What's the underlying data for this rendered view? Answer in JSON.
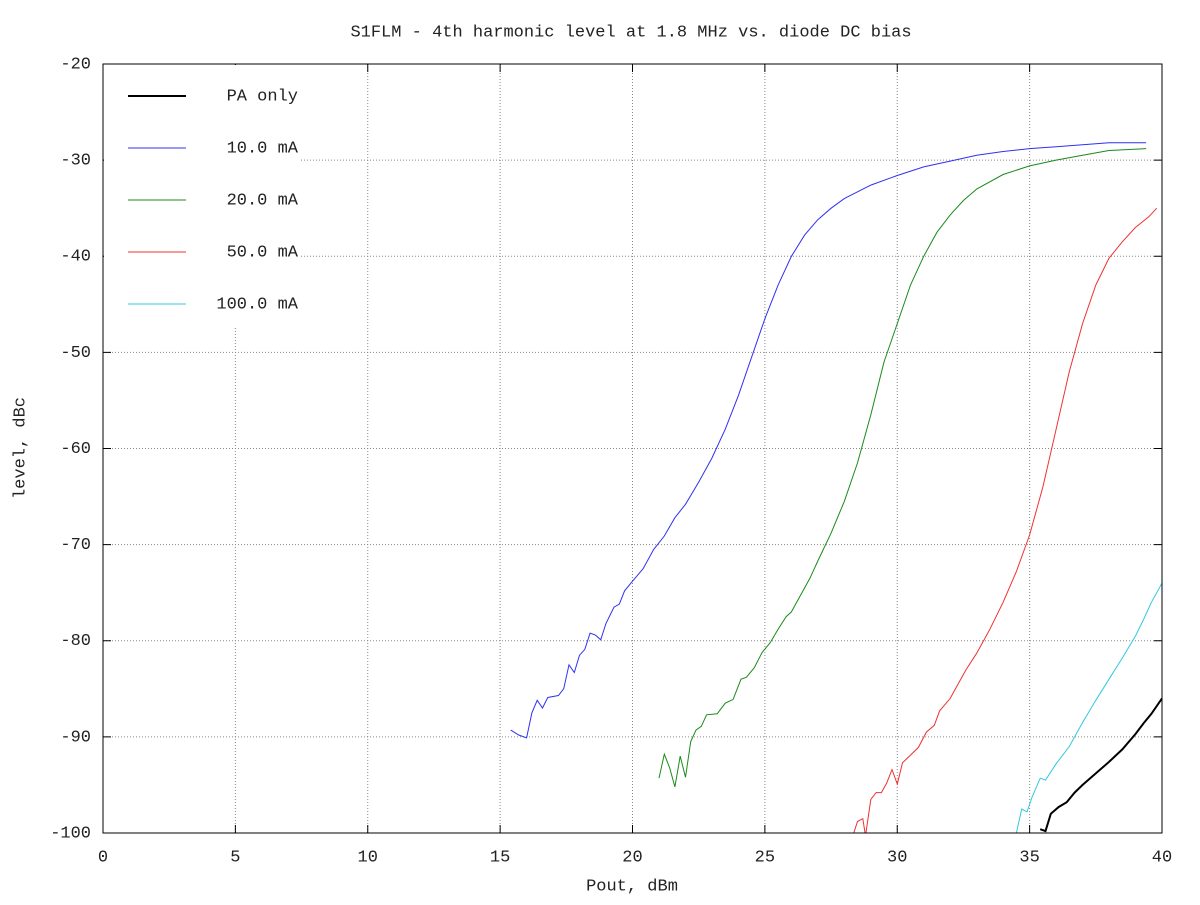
{
  "chart_data": {
    "type": "line",
    "title": "S1FLM - 4th harmonic level at 1.8 MHz vs. diode DC bias",
    "x_label": "Pout, dBm",
    "y_label": "level, dBc",
    "xlim": [
      0,
      40
    ],
    "xticks": [
      0,
      5,
      10,
      15,
      20,
      25,
      30,
      35,
      40
    ],
    "ylim": [
      -100,
      -20
    ],
    "yticks": [
      -100,
      -90,
      -80,
      -70,
      -60,
      -50,
      -40,
      -30,
      -20
    ],
    "grid": true,
    "legend": "top-left",
    "series": [
      {
        "name": "PA only",
        "color": "#000000",
        "x": [
          35.4,
          35.6,
          35.8,
          36.1,
          36.4,
          36.7,
          37,
          37.5,
          38,
          38.5,
          39,
          39.3,
          39.6,
          40
        ],
        "values": [
          -99.6,
          -99.8,
          -98,
          -97.3,
          -96.8,
          -95.8,
          -95,
          -93.8,
          -92.6,
          -91.3,
          -89.7,
          -88.6,
          -87.6,
          -86
        ]
      },
      {
        "name": "10.0 mA",
        "color": "#3030f0",
        "x": [
          15.4,
          15.7,
          16,
          16.2,
          16.4,
          16.6,
          16.8,
          17.2,
          17.4,
          17.6,
          17.8,
          18,
          18.2,
          18.4,
          18.6,
          18.8,
          19,
          19.3,
          19.5,
          19.7,
          20,
          20.4,
          20.8,
          21.2,
          21.6,
          22,
          22.5,
          23,
          23.5,
          24,
          24.5,
          25,
          25.5,
          26,
          26.5,
          27,
          27.5,
          28,
          29,
          30,
          31,
          32,
          33,
          34,
          35,
          36,
          37,
          38,
          39.4
        ],
        "values": [
          -89.3,
          -89.8,
          -90.1,
          -87.5,
          -86.2,
          -87,
          -85.9,
          -85.7,
          -85,
          -82.5,
          -83.3,
          -81.5,
          -80.9,
          -79.2,
          -79.4,
          -79.9,
          -78.2,
          -76.5,
          -76.2,
          -74.8,
          -73.8,
          -72.5,
          -70.5,
          -69.1,
          -67.2,
          -65.8,
          -63.5,
          -61,
          -58,
          -54.5,
          -50.5,
          -46.5,
          -43,
          -40,
          -37.8,
          -36.2,
          -35,
          -34,
          -32.6,
          -31.6,
          -30.7,
          -30.1,
          -29.5,
          -29.1,
          -28.8,
          -28.6,
          -28.4,
          -28.2,
          -28.2
        ]
      },
      {
        "name": "20.0 mA",
        "color": "#1a8a1a",
        "x": [
          21,
          21.2,
          21.4,
          21.6,
          21.8,
          22,
          22.2,
          22.4,
          22.6,
          22.8,
          23.2,
          23.5,
          23.8,
          24.1,
          24.3,
          24.6,
          24.9,
          25.2,
          25.5,
          25.8,
          26,
          26.3,
          26.7,
          27,
          27.5,
          28,
          28.5,
          29,
          29.5,
          30,
          30.5,
          31,
          31.5,
          32,
          32.5,
          33,
          34,
          35,
          36,
          37,
          38,
          39.4
        ],
        "values": [
          -94.3,
          -91.8,
          -93.2,
          -95.2,
          -92,
          -94.2,
          -90.5,
          -89.3,
          -88.9,
          -87.7,
          -87.6,
          -86.5,
          -86.1,
          -84,
          -83.8,
          -82.8,
          -81.2,
          -80.2,
          -78.8,
          -77.5,
          -77,
          -75.5,
          -73.5,
          -71.7,
          -68.8,
          -65.5,
          -61.5,
          -56.5,
          -51,
          -47,
          -43,
          -40,
          -37.5,
          -35.7,
          -34.2,
          -33,
          -31.5,
          -30.6,
          -30,
          -29.5,
          -29,
          -28.8
        ]
      },
      {
        "name": "50.0 mA",
        "color": "#f03030",
        "x": [
          28.3,
          28.5,
          28.7,
          28.8,
          29,
          29.2,
          29.4,
          29.6,
          29.8,
          30,
          30.2,
          30.5,
          30.8,
          31.1,
          31.4,
          31.6,
          32,
          32.3,
          32.6,
          33,
          33.5,
          34,
          34.5,
          35,
          35.5,
          36,
          36.5,
          37,
          37.5,
          38,
          38.5,
          39,
          39.5,
          39.8
        ],
        "values": [
          -100.5,
          -98.8,
          -98.5,
          -100.3,
          -96.5,
          -95.8,
          -95.8,
          -94.8,
          -93.4,
          -94.9,
          -92.7,
          -91.9,
          -91.1,
          -89.5,
          -88.8,
          -87.3,
          -86,
          -84.5,
          -83,
          -81.3,
          -78.8,
          -76,
          -72.8,
          -69,
          -64,
          -58,
          -52,
          -47,
          -43,
          -40.2,
          -38.5,
          -37,
          -35.9,
          -35
        ]
      },
      {
        "name": "100.0 mA",
        "color": "#30c8e0",
        "x": [
          34.5,
          34.7,
          34.9,
          35.1,
          35.4,
          35.6,
          36,
          36.5,
          37,
          37.5,
          38,
          38.5,
          39,
          39.3,
          39.6,
          40
        ],
        "values": [
          -100,
          -97.5,
          -97.8,
          -96.2,
          -94.3,
          -94.5,
          -92.8,
          -91,
          -88.5,
          -86.2,
          -84,
          -81.8,
          -79.5,
          -77.8,
          -76,
          -74
        ]
      }
    ]
  }
}
